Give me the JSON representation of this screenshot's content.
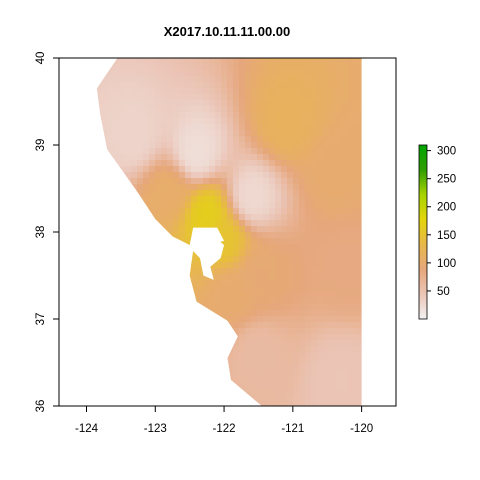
{
  "chart_data": {
    "type": "heatmap",
    "title": "X2017.10.11.11.00.00",
    "xlabel": "",
    "ylabel": "",
    "xlim": [
      -124.4,
      -119.5
    ],
    "ylim": [
      36,
      40
    ],
    "x_ticks": [
      "-124",
      "-123",
      "-122",
      "-121",
      "-120"
    ],
    "y_ticks": [
      "36",
      "37",
      "38",
      "39",
      "40"
    ],
    "legend": {
      "position": "right",
      "min": 0,
      "max": 310,
      "ticks": [
        "50",
        "100",
        "150",
        "200",
        "250",
        "300"
      ],
      "colors": [
        "#f2f2f2",
        "#ebc5b7",
        "#e6a77c",
        "#e8b84a",
        "#e3d50c",
        "#a7d300",
        "#2f9e00",
        "#00a600"
      ]
    },
    "land_polygon_lonlat": [
      [
        -123.55,
        40.0
      ],
      [
        -120.0,
        40.0
      ],
      [
        -120.0,
        36.0
      ],
      [
        -121.45,
        36.0
      ],
      [
        -121.9,
        36.3
      ],
      [
        -121.95,
        36.55
      ],
      [
        -121.8,
        36.8
      ],
      [
        -121.95,
        36.98
      ],
      [
        -122.4,
        37.2
      ],
      [
        -122.5,
        37.5
      ],
      [
        -122.45,
        37.78
      ],
      [
        -122.0,
        37.9
      ],
      [
        -122.1,
        38.05
      ],
      [
        -122.45,
        38.05
      ],
      [
        -122.5,
        37.85
      ],
      [
        -122.75,
        37.95
      ],
      [
        -123.0,
        38.15
      ],
      [
        -123.25,
        38.45
      ],
      [
        -123.7,
        38.95
      ],
      [
        -123.8,
        39.35
      ],
      [
        -123.85,
        39.65
      ],
      [
        -123.55,
        40.0
      ]
    ],
    "water_polygon_lonlat": [
      [
        -122.45,
        37.95
      ],
      [
        -122.2,
        38.05
      ],
      [
        -122.15,
        37.95
      ],
      [
        -122.0,
        37.85
      ],
      [
        -122.05,
        37.7
      ],
      [
        -122.2,
        37.6
      ],
      [
        -122.15,
        37.45
      ],
      [
        -122.3,
        37.5
      ],
      [
        -122.35,
        37.7
      ],
      [
        -122.45,
        37.78
      ]
    ],
    "series": [
      {
        "values": [
          {
            "lon": -122.25,
            "lat": 38.2,
            "value": 165
          },
          {
            "lon": -122.0,
            "lat": 37.9,
            "value": 150
          },
          {
            "lon": -121.1,
            "lat": 39.25,
            "value": 115
          },
          {
            "lon": -122.8,
            "lat": 38.45,
            "value": 105
          },
          {
            "lon": -121.9,
            "lat": 37.3,
            "value": 100
          },
          {
            "lon": -121.5,
            "lat": 37.5,
            "value": 95
          },
          {
            "lon": -120.35,
            "lat": 38.7,
            "value": 100
          },
          {
            "lon": -120.2,
            "lat": 37.6,
            "value": 85
          },
          {
            "lon": -121.5,
            "lat": 36.6,
            "value": 60
          },
          {
            "lon": -123.3,
            "lat": 39.1,
            "value": 30
          },
          {
            "lon": -122.4,
            "lat": 38.9,
            "value": 20
          },
          {
            "lon": -121.6,
            "lat": 38.4,
            "value": 25
          },
          {
            "lon": -120.3,
            "lat": 36.3,
            "value": 45
          }
        ]
      }
    ]
  }
}
